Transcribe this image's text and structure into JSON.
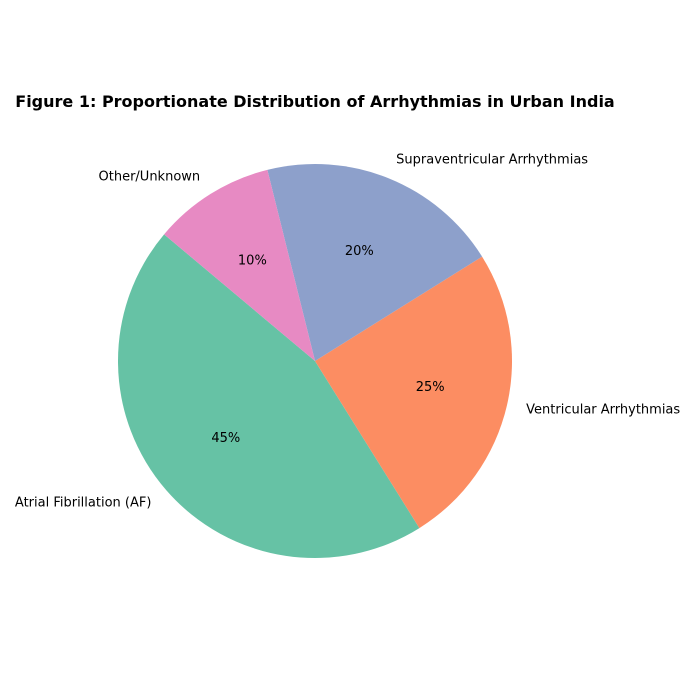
{
  "chart_data": {
    "type": "pie",
    "title": "Figure 1: Proportionate Distribution of Arrhythmias in Urban India",
    "categories": [
      "Atrial Fibrillation (AF)",
      "Ventricular Arrhythmias",
      "Supraventricular Arrhythmias",
      "Other/Unknown"
    ],
    "values": [
      45,
      25,
      20,
      10
    ],
    "percent_labels": [
      "45%",
      "25%",
      "20%",
      "10%"
    ],
    "colors": [
      "#66c2a5",
      "#fc8d62",
      "#8da0cb",
      "#e78ac3"
    ],
    "start_angle_deg": 140,
    "direction": "counterclockwise",
    "legend": "none"
  }
}
